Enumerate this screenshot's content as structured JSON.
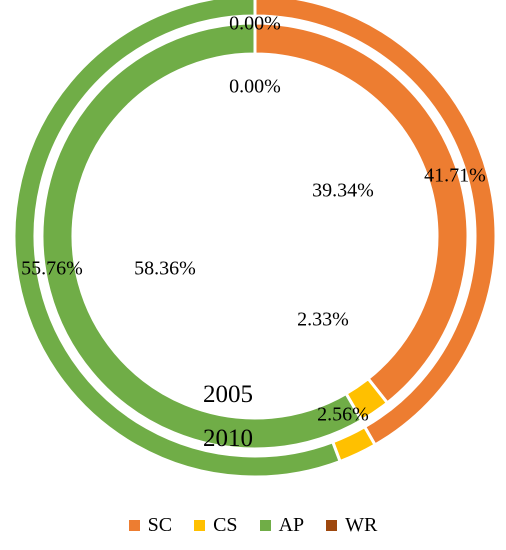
{
  "chart_data": {
    "type": "donut",
    "legend_position": "bottom",
    "categories": [
      "SC",
      "CS",
      "AP",
      "WR"
    ],
    "colors": {
      "SC": "#ED7D31",
      "CS": "#FFC000",
      "AP": "#70AD47",
      "WR": "#9E480E"
    },
    "series": [
      {
        "name": "2005",
        "ring": "inner",
        "values": [
          39.34,
          2.33,
          58.36,
          0.0
        ],
        "labels": [
          "39.34%",
          "2.33%",
          "58.36%",
          "0.00%"
        ]
      },
      {
        "name": "2010",
        "ring": "outer",
        "values": [
          41.71,
          2.56,
          55.76,
          0.0
        ],
        "labels": [
          "41.71%",
          "2.56%",
          "55.76%",
          "0.00%"
        ]
      }
    ]
  }
}
